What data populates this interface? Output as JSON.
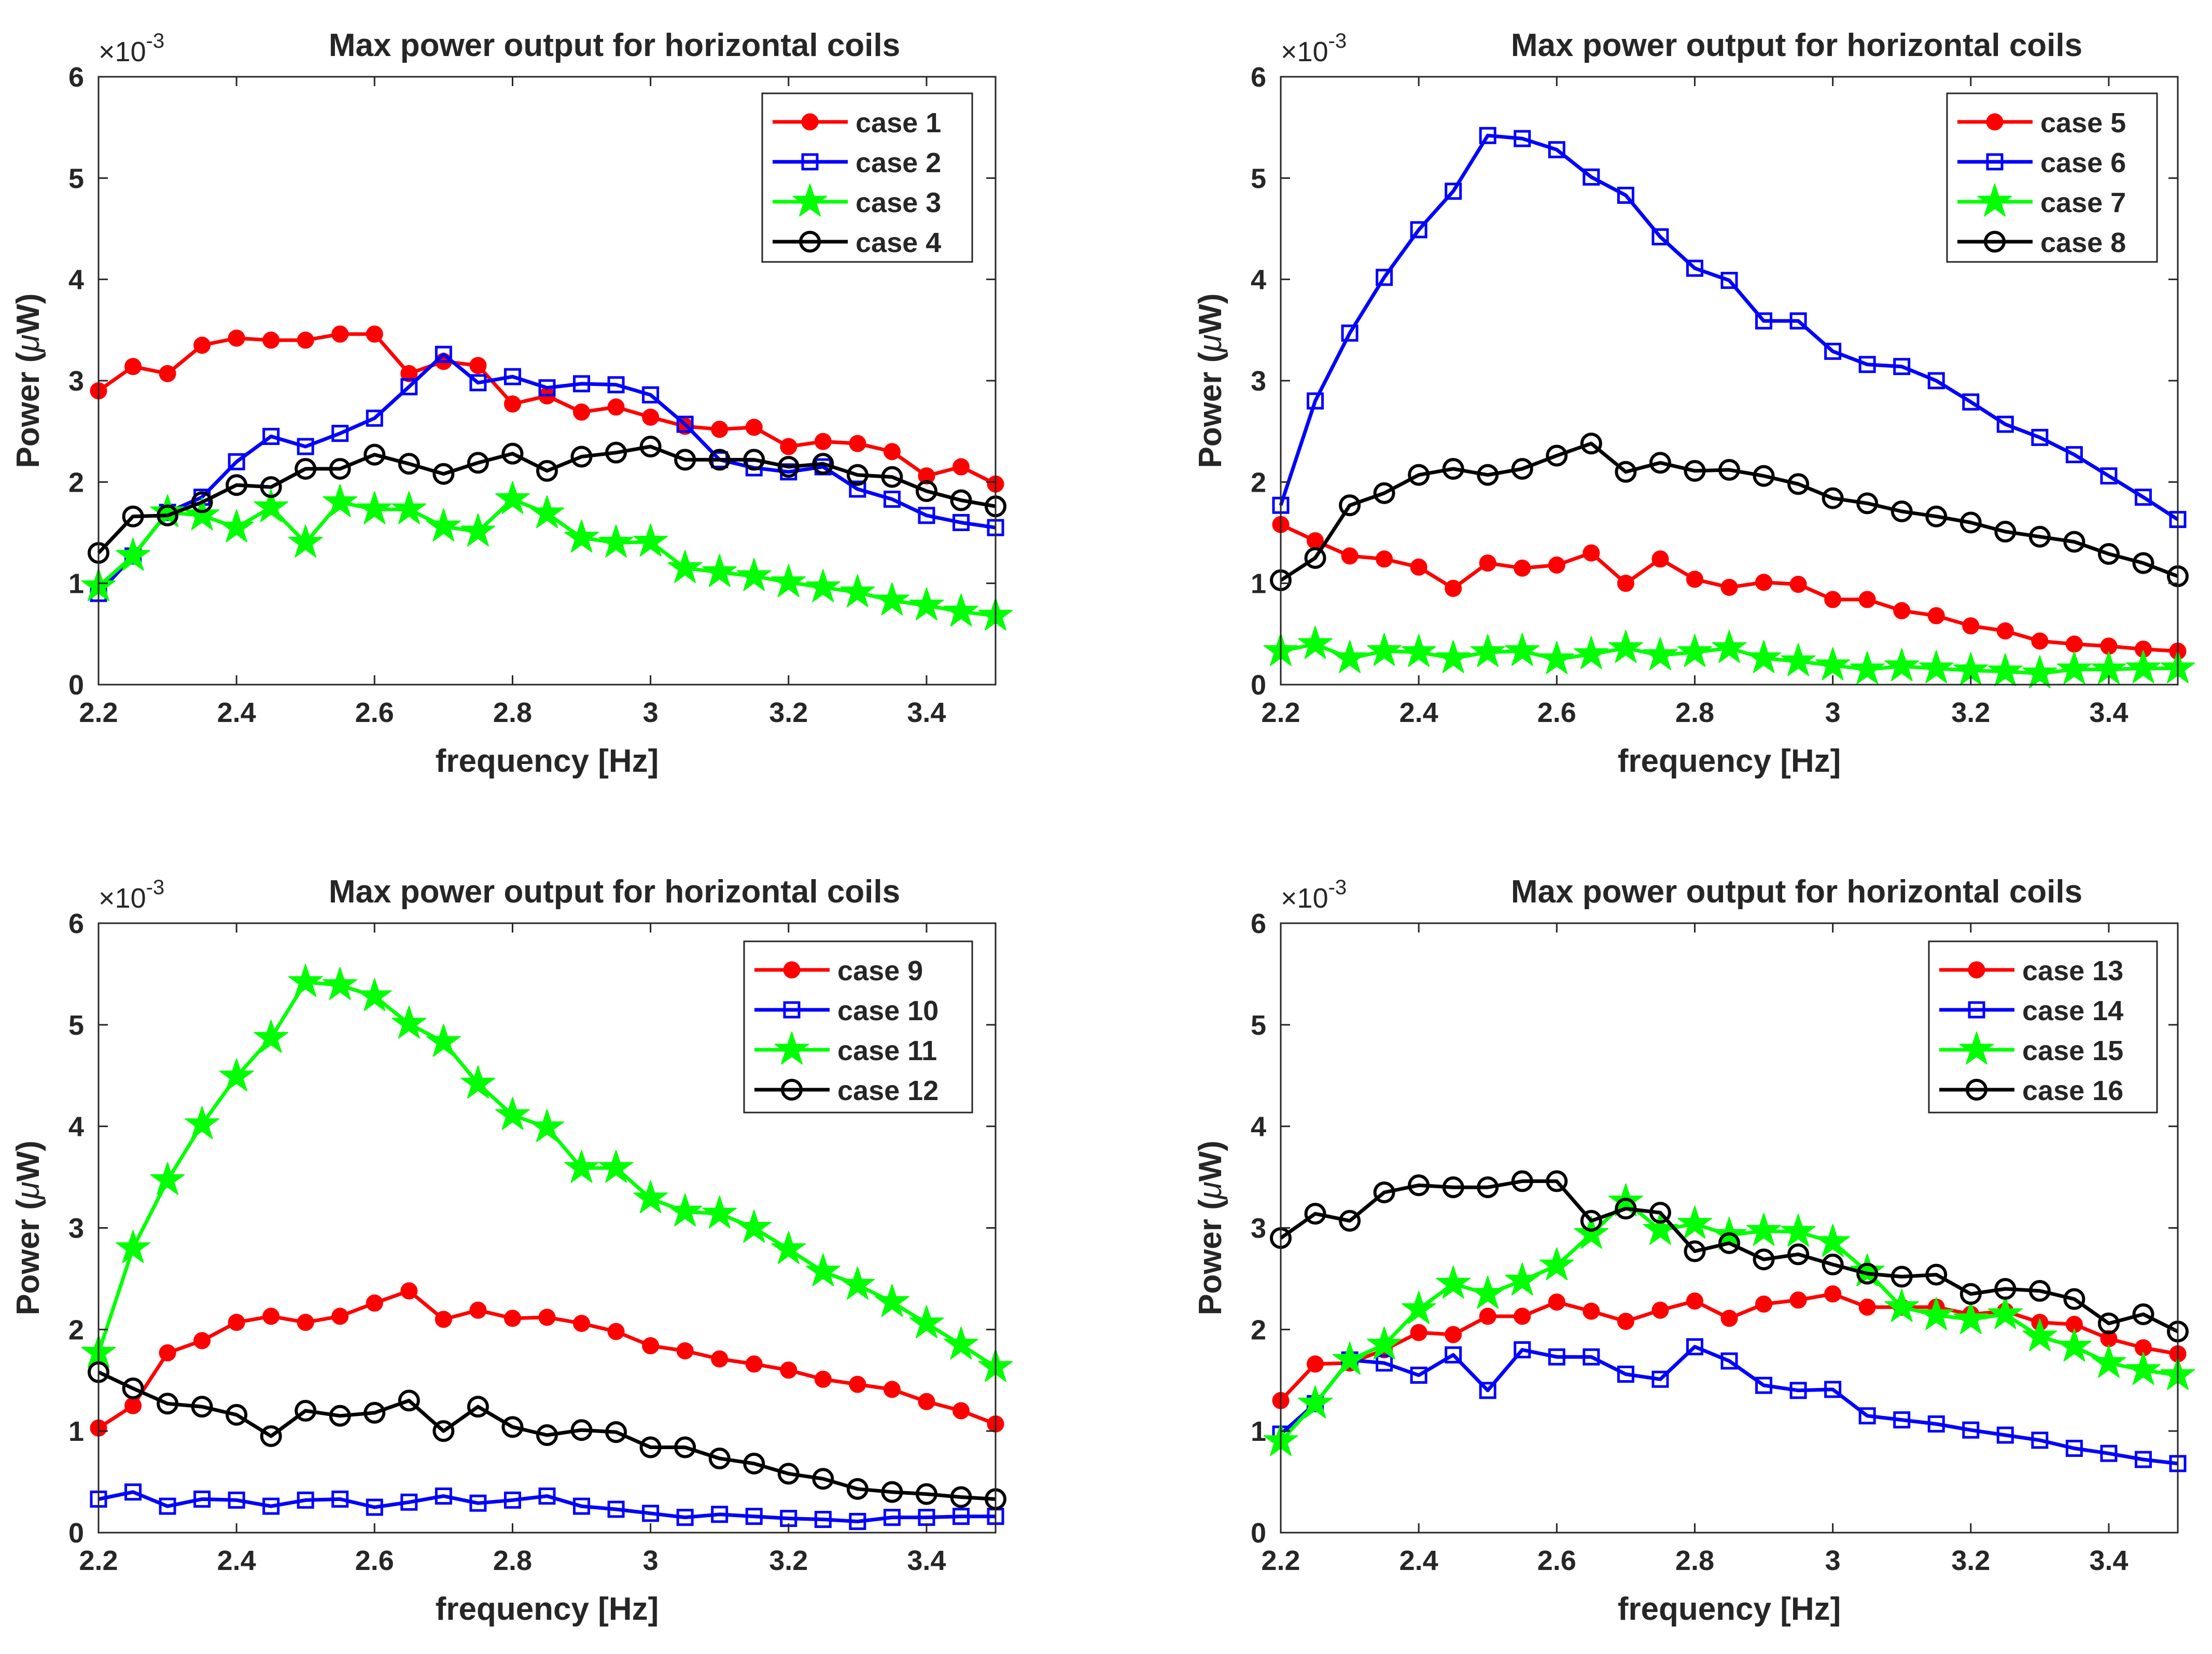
{
  "chart_data": [
    {
      "type": "line",
      "title": "Max power output for horizontal coils",
      "xlabel": "frequency [Hz]",
      "ylabel": "Power (μW)",
      "ylabel_pre": "Power (",
      "ylabel_mu": "μ",
      "ylabel_post": "W)",
      "exponent_base": "×10",
      "exponent_power": "-3",
      "xlim": [
        2.2,
        3.5
      ],
      "ylim": [
        0,
        6
      ],
      "xticks": [
        "2.2",
        "2.4",
        "2.6",
        "2.8",
        "3",
        "3.2",
        "3.4"
      ],
      "yticks": [
        "0",
        "1",
        "2",
        "3",
        "4",
        "5",
        "6"
      ],
      "legend_position": "top-right",
      "grid": false,
      "x": [
        2.2,
        2.25,
        2.3,
        2.35,
        2.4,
        2.45,
        2.5,
        2.55,
        2.6,
        2.65,
        2.7,
        2.75,
        2.8,
        2.85,
        2.9,
        2.95,
        3.0,
        3.05,
        3.1,
        3.15,
        3.2,
        3.25,
        3.3,
        3.35,
        3.4,
        3.45,
        3.5
      ],
      "series": [
        {
          "name": "case 1",
          "color": "#ff0000",
          "marker": "circle",
          "values": [
            2.9,
            3.14,
            3.07,
            3.35,
            3.42,
            3.4,
            3.4,
            3.46,
            3.46,
            3.07,
            3.19,
            3.15,
            2.77,
            2.85,
            2.69,
            2.74,
            2.64,
            2.55,
            2.52,
            2.54,
            2.35,
            2.4,
            2.38,
            2.3,
            2.06,
            2.15,
            1.98
          ]
        },
        {
          "name": "case 2",
          "color": "#0000ff",
          "marker": "square",
          "values": [
            0.9,
            1.27,
            1.7,
            1.85,
            2.2,
            2.45,
            2.35,
            2.48,
            2.63,
            2.94,
            3.26,
            2.98,
            3.04,
            2.93,
            2.97,
            2.96,
            2.86,
            2.57,
            2.22,
            2.14,
            2.1,
            2.15,
            1.93,
            1.83,
            1.67,
            1.6,
            1.55
          ]
        },
        {
          "name": "case 3",
          "color": "#00ff00",
          "marker": "star",
          "values": [
            0.97,
            1.27,
            1.7,
            1.67,
            1.55,
            1.75,
            1.4,
            1.8,
            1.73,
            1.73,
            1.56,
            1.51,
            1.83,
            1.69,
            1.45,
            1.4,
            1.41,
            1.15,
            1.11,
            1.07,
            1.01,
            0.96,
            0.91,
            0.83,
            0.78,
            0.72,
            0.68
          ]
        },
        {
          "name": "case 4",
          "color": "#000000",
          "marker": "circle-open",
          "values": [
            1.3,
            1.66,
            1.67,
            1.8,
            1.97,
            1.95,
            2.13,
            2.13,
            2.27,
            2.18,
            2.08,
            2.19,
            2.28,
            2.11,
            2.25,
            2.29,
            2.35,
            2.22,
            2.22,
            2.22,
            2.15,
            2.18,
            2.07,
            2.05,
            1.91,
            1.82,
            1.76
          ]
        }
      ]
    },
    {
      "type": "line",
      "title": "Max power output for horizontal coils",
      "xlabel": "frequency [Hz]",
      "ylabel": "Power (μW)",
      "ylabel_pre": "Power (",
      "ylabel_mu": "μ",
      "ylabel_post": "W)",
      "exponent_base": "×10",
      "exponent_power": "-3",
      "xlim": [
        2.2,
        3.5
      ],
      "ylim": [
        0,
        6
      ],
      "xticks": [
        "2.2",
        "2.4",
        "2.6",
        "2.8",
        "3",
        "3.2",
        "3.4"
      ],
      "yticks": [
        "0",
        "1",
        "2",
        "3",
        "4",
        "5",
        "6"
      ],
      "legend_position": "top-right",
      "grid": false,
      "x": [
        2.2,
        2.25,
        2.3,
        2.35,
        2.4,
        2.45,
        2.5,
        2.55,
        2.6,
        2.65,
        2.7,
        2.75,
        2.8,
        2.85,
        2.9,
        2.95,
        3.0,
        3.05,
        3.1,
        3.15,
        3.2,
        3.25,
        3.3,
        3.35,
        3.4,
        3.45,
        3.5
      ],
      "series": [
        {
          "name": "case 5",
          "color": "#ff0000",
          "marker": "circle",
          "values": [
            1.58,
            1.42,
            1.27,
            1.24,
            1.16,
            0.95,
            1.2,
            1.15,
            1.18,
            1.3,
            1.0,
            1.24,
            1.04,
            0.96,
            1.01,
            0.99,
            0.84,
            0.84,
            0.73,
            0.68,
            0.58,
            0.53,
            0.43,
            0.4,
            0.38,
            0.35,
            0.33
          ]
        },
        {
          "name": "case 6",
          "color": "#0000ff",
          "marker": "square",
          "values": [
            1.77,
            2.8,
            3.47,
            4.02,
            4.49,
            4.87,
            5.42,
            5.39,
            5.28,
            5.01,
            4.83,
            4.42,
            4.11,
            3.99,
            3.59,
            3.59,
            3.29,
            3.16,
            3.14,
            3.0,
            2.79,
            2.57,
            2.44,
            2.27,
            2.06,
            1.85,
            1.63
          ]
        },
        {
          "name": "case 7",
          "color": "#00ff00",
          "marker": "star",
          "values": [
            0.33,
            0.4,
            0.26,
            0.33,
            0.32,
            0.26,
            0.32,
            0.33,
            0.25,
            0.3,
            0.36,
            0.29,
            0.32,
            0.36,
            0.26,
            0.23,
            0.19,
            0.15,
            0.18,
            0.16,
            0.14,
            0.13,
            0.11,
            0.15,
            0.15,
            0.16,
            0.16
          ]
        },
        {
          "name": "case 8",
          "color": "#000000",
          "marker": "circle-open",
          "values": [
            1.03,
            1.25,
            1.77,
            1.89,
            2.07,
            2.13,
            2.07,
            2.13,
            2.26,
            2.38,
            2.1,
            2.19,
            2.11,
            2.12,
            2.06,
            1.98,
            1.84,
            1.79,
            1.71,
            1.66,
            1.6,
            1.51,
            1.46,
            1.41,
            1.29,
            1.2,
            1.07
          ]
        }
      ]
    },
    {
      "type": "line",
      "title": "Max power output for horizontal coils",
      "xlabel": "frequency [Hz]",
      "ylabel": "Power (μW)",
      "ylabel_pre": "Power (",
      "ylabel_mu": "μ",
      "ylabel_post": "W)",
      "exponent_base": "×10",
      "exponent_power": "-3",
      "xlim": [
        2.2,
        3.5
      ],
      "ylim": [
        0,
        6
      ],
      "xticks": [
        "2.2",
        "2.4",
        "2.6",
        "2.8",
        "3",
        "3.2",
        "3.4"
      ],
      "yticks": [
        "0",
        "1",
        "2",
        "3",
        "4",
        "5",
        "6"
      ],
      "legend_position": "top-right",
      "grid": false,
      "x": [
        2.2,
        2.25,
        2.3,
        2.35,
        2.4,
        2.45,
        2.5,
        2.55,
        2.6,
        2.65,
        2.7,
        2.75,
        2.8,
        2.85,
        2.9,
        2.95,
        3.0,
        3.05,
        3.1,
        3.15,
        3.2,
        3.25,
        3.3,
        3.35,
        3.4,
        3.45,
        3.5
      ],
      "series": [
        {
          "name": "case 9",
          "color": "#ff0000",
          "marker": "circle",
          "values": [
            1.03,
            1.25,
            1.77,
            1.89,
            2.07,
            2.13,
            2.07,
            2.13,
            2.26,
            2.38,
            2.1,
            2.19,
            2.11,
            2.12,
            2.06,
            1.98,
            1.84,
            1.79,
            1.71,
            1.66,
            1.6,
            1.51,
            1.46,
            1.41,
            1.29,
            1.2,
            1.07
          ]
        },
        {
          "name": "case 10",
          "color": "#0000ff",
          "marker": "square",
          "values": [
            0.33,
            0.4,
            0.26,
            0.33,
            0.32,
            0.26,
            0.32,
            0.33,
            0.25,
            0.3,
            0.36,
            0.29,
            0.32,
            0.36,
            0.26,
            0.23,
            0.19,
            0.15,
            0.18,
            0.16,
            0.14,
            0.13,
            0.11,
            0.15,
            0.15,
            0.16,
            0.16
          ]
        },
        {
          "name": "case 11",
          "color": "#00ff00",
          "marker": "star",
          "values": [
            1.77,
            2.8,
            3.47,
            4.02,
            4.49,
            4.87,
            5.42,
            5.39,
            5.28,
            5.01,
            4.83,
            4.42,
            4.11,
            3.99,
            3.59,
            3.59,
            3.29,
            3.16,
            3.14,
            3.0,
            2.79,
            2.57,
            2.44,
            2.27,
            2.06,
            1.85,
            1.63
          ]
        },
        {
          "name": "case 12",
          "color": "#000000",
          "marker": "circle-open",
          "values": [
            1.58,
            1.42,
            1.27,
            1.24,
            1.16,
            0.95,
            1.2,
            1.15,
            1.18,
            1.3,
            1.0,
            1.24,
            1.04,
            0.96,
            1.01,
            0.99,
            0.84,
            0.84,
            0.73,
            0.68,
            0.58,
            0.53,
            0.43,
            0.4,
            0.38,
            0.35,
            0.33
          ]
        }
      ]
    },
    {
      "type": "line",
      "title": "Max power output for horizontal coils",
      "xlabel": "frequency [Hz]",
      "ylabel": "Power (μW)",
      "ylabel_pre": "Power (",
      "ylabel_mu": "μ",
      "ylabel_post": "W)",
      "exponent_base": "×10",
      "exponent_power": "-3",
      "xlim": [
        2.2,
        3.5
      ],
      "ylim": [
        0,
        6
      ],
      "xticks": [
        "2.2",
        "2.4",
        "2.6",
        "2.8",
        "3",
        "3.2",
        "3.4"
      ],
      "yticks": [
        "0",
        "1",
        "2",
        "3",
        "4",
        "5",
        "6"
      ],
      "legend_position": "top-right",
      "grid": false,
      "x": [
        2.2,
        2.25,
        2.3,
        2.35,
        2.4,
        2.45,
        2.5,
        2.55,
        2.6,
        2.65,
        2.7,
        2.75,
        2.8,
        2.85,
        2.9,
        2.95,
        3.0,
        3.05,
        3.1,
        3.15,
        3.2,
        3.25,
        3.3,
        3.35,
        3.4,
        3.45,
        3.5
      ],
      "series": [
        {
          "name": "case 13",
          "color": "#ff0000",
          "marker": "circle",
          "values": [
            1.3,
            1.66,
            1.67,
            1.8,
            1.97,
            1.95,
            2.13,
            2.13,
            2.27,
            2.18,
            2.08,
            2.19,
            2.28,
            2.11,
            2.25,
            2.29,
            2.35,
            2.22,
            2.22,
            2.22,
            2.15,
            2.18,
            2.07,
            2.05,
            1.91,
            1.82,
            1.76
          ]
        },
        {
          "name": "case 14",
          "color": "#0000ff",
          "marker": "square",
          "values": [
            0.97,
            1.27,
            1.7,
            1.67,
            1.55,
            1.75,
            1.4,
            1.8,
            1.73,
            1.73,
            1.56,
            1.51,
            1.83,
            1.69,
            1.45,
            1.4,
            1.41,
            1.15,
            1.11,
            1.07,
            1.01,
            0.96,
            0.91,
            0.83,
            0.78,
            0.72,
            0.68
          ]
        },
        {
          "name": "case 15",
          "color": "#00ff00",
          "marker": "star",
          "values": [
            0.9,
            1.27,
            1.7,
            1.85,
            2.2,
            2.45,
            2.35,
            2.48,
            2.63,
            2.94,
            3.26,
            2.98,
            3.04,
            2.93,
            2.97,
            2.96,
            2.86,
            2.57,
            2.22,
            2.14,
            2.1,
            2.15,
            1.93,
            1.83,
            1.67,
            1.6,
            1.55
          ]
        },
        {
          "name": "case 16",
          "color": "#000000",
          "marker": "circle-open",
          "values": [
            2.9,
            3.14,
            3.07,
            3.35,
            3.42,
            3.4,
            3.4,
            3.46,
            3.46,
            3.07,
            3.19,
            3.15,
            2.77,
            2.85,
            2.69,
            2.74,
            2.64,
            2.55,
            2.52,
            2.54,
            2.35,
            2.4,
            2.38,
            2.3,
            2.06,
            2.15,
            1.98
          ]
        }
      ]
    }
  ]
}
